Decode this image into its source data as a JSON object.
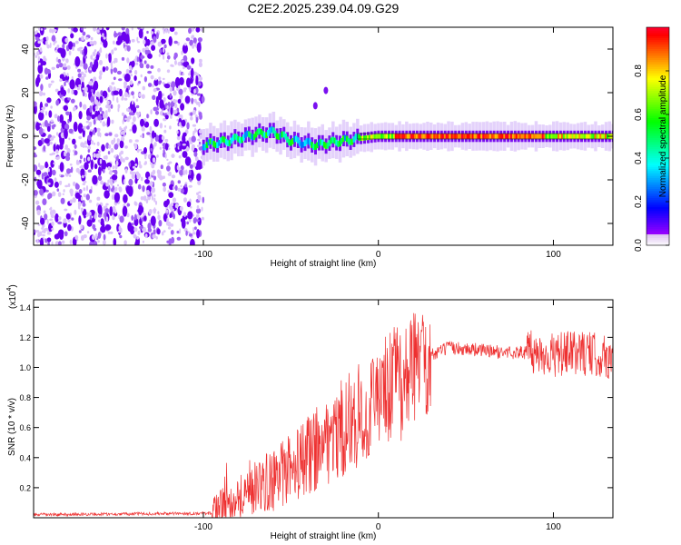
{
  "title": "C2E2.2025.239.04.09.G29",
  "chart_data": [
    {
      "type": "heatmap",
      "name": "spectrogram",
      "xlabel": "Height of straight line (km)",
      "ylabel": "Frequency (Hz)",
      "xlim": [
        -197,
        134
      ],
      "ylim": [
        -50,
        50
      ],
      "xticks": [
        -100,
        0,
        100
      ],
      "yticks": [
        -40,
        -20,
        0,
        20,
        40
      ],
      "colorbar": {
        "label": "Normalized spectral amplitude",
        "range": [
          0,
          1
        ],
        "ticks": [
          0.0,
          0.2,
          0.4,
          0.6,
          0.8
        ]
      },
      "features": {
        "noise_region_x": [
          -197,
          -100
        ],
        "ridge": [
          {
            "x": -100,
            "y": -4
          },
          {
            "x": -85,
            "y": -2
          },
          {
            "x": -70,
            "y": 1
          },
          {
            "x": -60,
            "y": 2
          },
          {
            "x": -50,
            "y": -2
          },
          {
            "x": -35,
            "y": -4
          },
          {
            "x": -20,
            "y": -2
          },
          {
            "x": -10,
            "y": -1
          },
          {
            "x": 0,
            "y": 0
          },
          {
            "x": 20,
            "y": 0
          },
          {
            "x": 60,
            "y": 0
          },
          {
            "x": 100,
            "y": 0
          },
          {
            "x": 134,
            "y": 0
          }
        ],
        "isolated_blobs": [
          {
            "x": -30,
            "y": 21
          },
          {
            "x": -36,
            "y": 14
          }
        ]
      }
    },
    {
      "type": "line",
      "name": "snr",
      "xlabel": "Height of straight line (km)",
      "ylabel": "SNR (10 * v/v)",
      "yscale_label": "(x10",
      "yscale_exponent": "4",
      "xlim": [
        -197,
        134
      ],
      "ylim": [
        0,
        1.45
      ],
      "xticks": [
        -100,
        0,
        100
      ],
      "yticks": [
        0.2,
        0.4,
        0.6,
        0.8,
        1.0,
        1.2,
        1.4
      ],
      "series_color": "#ee3030",
      "trend": [
        {
          "x": -197,
          "y": 0.02
        },
        {
          "x": -95,
          "y": 0.03
        },
        {
          "x": -90,
          "y": 0.08
        },
        {
          "x": -80,
          "y": 0.14
        },
        {
          "x": -70,
          "y": 0.2
        },
        {
          "x": -60,
          "y": 0.25
        },
        {
          "x": -50,
          "y": 0.32
        },
        {
          "x": -40,
          "y": 0.42
        },
        {
          "x": -30,
          "y": 0.52
        },
        {
          "x": -20,
          "y": 0.6
        },
        {
          "x": -10,
          "y": 0.68
        },
        {
          "x": 0,
          "y": 0.78
        },
        {
          "x": 10,
          "y": 0.9
        },
        {
          "x": 20,
          "y": 1.0
        },
        {
          "x": 30,
          "y": 1.08
        },
        {
          "x": 40,
          "y": 1.13
        },
        {
          "x": 55,
          "y": 1.12
        },
        {
          "x": 70,
          "y": 1.1
        },
        {
          "x": 85,
          "y": 1.1
        },
        {
          "x": 100,
          "y": 1.08
        },
        {
          "x": 115,
          "y": 1.1
        },
        {
          "x": 134,
          "y": 1.06
        }
      ]
    }
  ]
}
